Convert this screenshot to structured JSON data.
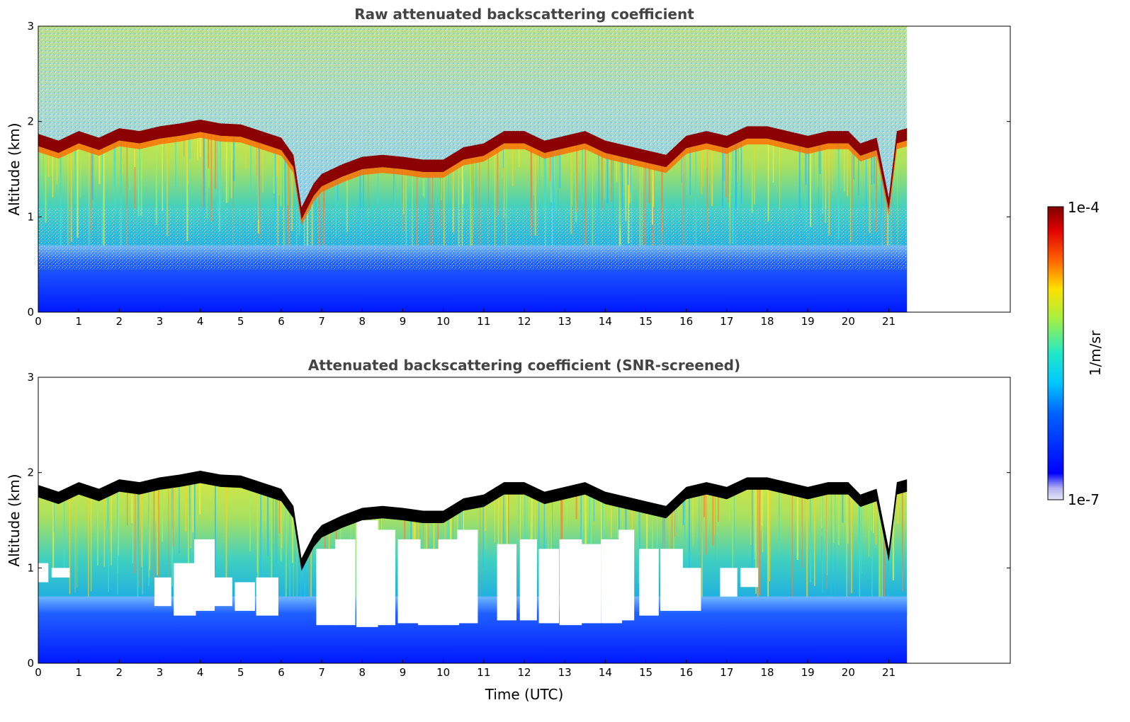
{
  "chart_data": [
    {
      "type": "heatmap",
      "title": "Raw attenuated backscattering coefficient",
      "ylabel": "Altitude (km)",
      "xlabel": "",
      "xlim": [
        0,
        24
      ],
      "ylim": [
        0,
        3
      ],
      "x_ticks": [
        "0",
        "1",
        "2",
        "3",
        "4",
        "5",
        "6",
        "7",
        "8",
        "9",
        "10",
        "11",
        "12",
        "13",
        "14",
        "15",
        "16",
        "17",
        "18",
        "19",
        "20",
        "21"
      ],
      "y_ticks": [
        "0",
        "1",
        "2",
        "3"
      ],
      "data_end_time": 21.45,
      "cloud_top_km": [
        [
          0,
          1.82
        ],
        [
          0.5,
          1.75
        ],
        [
          1,
          1.85
        ],
        [
          1.5,
          1.78
        ],
        [
          2,
          1.88
        ],
        [
          2.5,
          1.85
        ],
        [
          3,
          1.9
        ],
        [
          3.5,
          1.93
        ],
        [
          4,
          1.97
        ],
        [
          4.5,
          1.93
        ],
        [
          5,
          1.92
        ],
        [
          5.5,
          1.85
        ],
        [
          6,
          1.78
        ],
        [
          6.3,
          1.6
        ],
        [
          6.5,
          1.05
        ],
        [
          6.8,
          1.3
        ],
        [
          7,
          1.4
        ],
        [
          7.5,
          1.5
        ],
        [
          8,
          1.58
        ],
        [
          8.5,
          1.6
        ],
        [
          9,
          1.58
        ],
        [
          9.5,
          1.55
        ],
        [
          10,
          1.55
        ],
        [
          10.5,
          1.68
        ],
        [
          11,
          1.72
        ],
        [
          11.5,
          1.85
        ],
        [
          12,
          1.85
        ],
        [
          12.5,
          1.75
        ],
        [
          13,
          1.8
        ],
        [
          13.5,
          1.85
        ],
        [
          14,
          1.75
        ],
        [
          14.5,
          1.7
        ],
        [
          15,
          1.65
        ],
        [
          15.5,
          1.6
        ],
        [
          16,
          1.8
        ],
        [
          16.5,
          1.85
        ],
        [
          17,
          1.8
        ],
        [
          17.5,
          1.9
        ],
        [
          18,
          1.9
        ],
        [
          18.5,
          1.85
        ],
        [
          19,
          1.8
        ],
        [
          19.5,
          1.85
        ],
        [
          20,
          1.85
        ],
        [
          20.3,
          1.72
        ],
        [
          20.7,
          1.78
        ],
        [
          21,
          1.15
        ],
        [
          21.2,
          1.85
        ],
        [
          21.45,
          1.88
        ]
      ],
      "screened": false
    },
    {
      "type": "heatmap",
      "title": "Attenuated backscattering coefficient (SNR-screened)",
      "ylabel": "Altitude (km)",
      "xlabel": "Time (UTC)",
      "xlim": [
        0,
        24
      ],
      "ylim": [
        0,
        3
      ],
      "x_ticks": [
        "0",
        "1",
        "2",
        "3",
        "4",
        "5",
        "6",
        "7",
        "8",
        "9",
        "10",
        "11",
        "12",
        "13",
        "14",
        "15",
        "16",
        "17",
        "18",
        "19",
        "20",
        "21"
      ],
      "y_ticks": [
        "0",
        "1",
        "2",
        "3"
      ],
      "data_end_time": 21.45,
      "screened": true,
      "screened_gap_km": [
        [
          0,
          0.85,
          1.05
        ],
        [
          0.5,
          0.9,
          1.0
        ],
        [
          3,
          0.6,
          0.9
        ],
        [
          3.5,
          0.5,
          1.05
        ],
        [
          4,
          0.55,
          1.3
        ],
        [
          4.5,
          0.6,
          0.9
        ],
        [
          5,
          0.55,
          0.85
        ],
        [
          5.5,
          0.5,
          0.9
        ],
        [
          7,
          0.4,
          1.2
        ],
        [
          7.5,
          0.4,
          1.3
        ],
        [
          8,
          0.38,
          1.5
        ],
        [
          8.5,
          0.4,
          1.4
        ],
        [
          9,
          0.42,
          1.3
        ],
        [
          9.5,
          0.4,
          1.2
        ],
        [
          10,
          0.4,
          1.3
        ],
        [
          10.5,
          0.42,
          1.4
        ],
        [
          11.5,
          0.45,
          1.25
        ],
        [
          12,
          0.45,
          1.3
        ],
        [
          12.5,
          0.42,
          1.2
        ],
        [
          13,
          0.4,
          1.3
        ],
        [
          13.5,
          0.42,
          1.25
        ],
        [
          14,
          0.42,
          1.3
        ],
        [
          14.5,
          0.45,
          1.4
        ],
        [
          15,
          0.5,
          1.2
        ],
        [
          15.5,
          0.55,
          1.2
        ],
        [
          16,
          0.55,
          1.0
        ],
        [
          17,
          0.7,
          1.0
        ],
        [
          17.5,
          0.8,
          1.0
        ]
      ]
    }
  ],
  "colorbar": {
    "label": "1/m/sr",
    "max_label": "1e-4",
    "min_label": "1e-7"
  },
  "colors": {
    "cloud_base": "#8b0000",
    "screened_top": "#000000"
  }
}
